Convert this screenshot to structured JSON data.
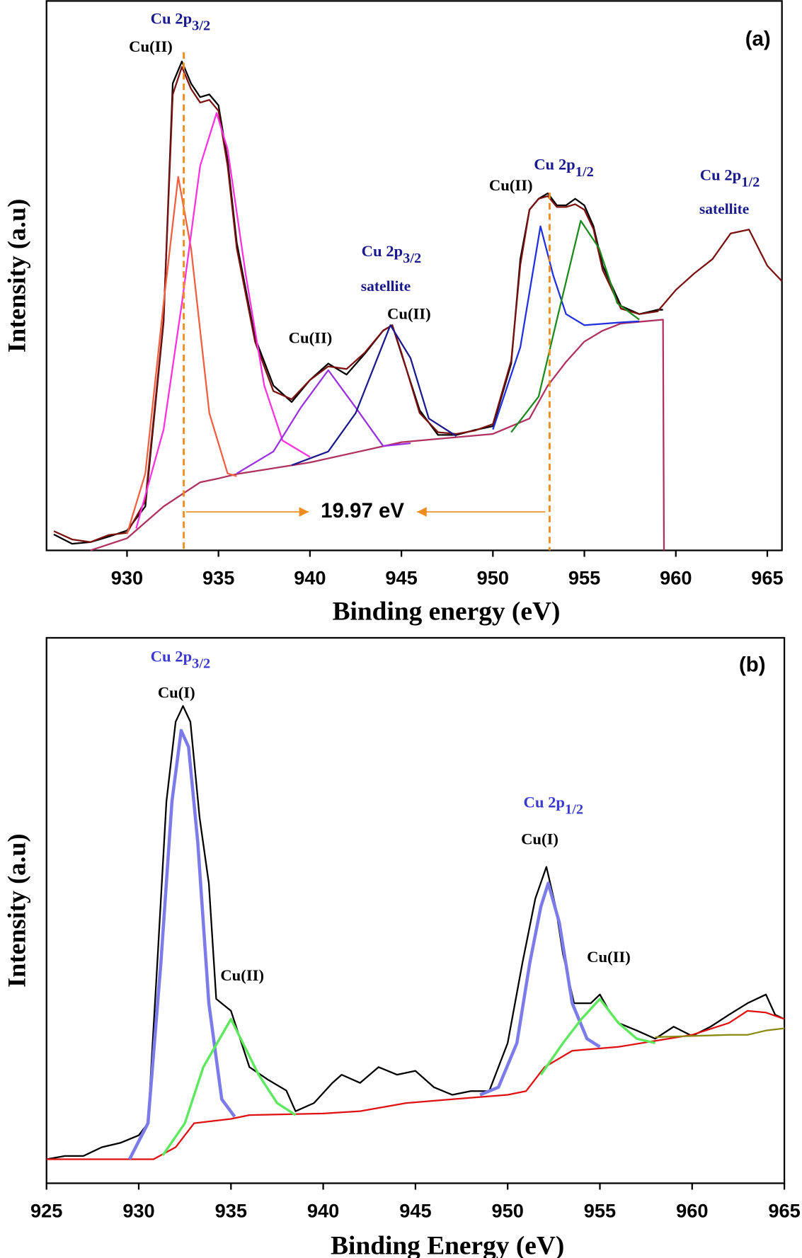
{
  "chart_data": [
    {
      "type": "line",
      "panel_label": "(a)",
      "xlabel": "Binding energy (eV)",
      "ylabel": "Intensity (a.u)",
      "xlim": [
        925.6,
        965.8
      ],
      "xticks": [
        930,
        935,
        940,
        945,
        950,
        955,
        960,
        965
      ],
      "ylim": [
        0,
        100
      ],
      "vlines": [
        933.1,
        953.1
      ],
      "vline_color": "#f08c1e",
      "series": [
        {
          "color": "#000000",
          "x": [
            926,
            927,
            928,
            929,
            930,
            931,
            932,
            932.5,
            933,
            933.5,
            934,
            934.5,
            935,
            935.5,
            936,
            937,
            938,
            939,
            940,
            941,
            942,
            943,
            944,
            944.5,
            945,
            946,
            947,
            948,
            949,
            950,
            951,
            951.5,
            952,
            952.5,
            953,
            953.5,
            954,
            954.5,
            955,
            955.5,
            956,
            957,
            958,
            959,
            959.3
          ],
          "values": [
            2.9,
            1.2,
            1.5,
            2.5,
            3.6,
            8,
            41.6,
            85,
            89,
            85,
            82.5,
            83,
            81,
            71,
            56,
            38.7,
            30,
            27,
            31,
            34,
            32,
            35.8,
            40,
            41,
            35.8,
            25.5,
            21,
            21,
            21.9,
            22.6,
            34,
            53,
            62,
            64,
            65,
            62.8,
            62.8,
            64,
            62.8,
            59,
            51.8,
            44.5,
            43,
            43.8,
            43.8
          ]
        },
        {
          "color": "#7b1010",
          "x": [
            926,
            927,
            928,
            929,
            930,
            931,
            932,
            932.5,
            933,
            933.5,
            934,
            934.5,
            935,
            935.5,
            936,
            937,
            938,
            939,
            940,
            941,
            942,
            943,
            944,
            944.5,
            945,
            946,
            947,
            948,
            949,
            950,
            951,
            951.5,
            952,
            952.5,
            953,
            953.5,
            954,
            954.5,
            955,
            955.5,
            956,
            957,
            958,
            959,
            960,
            961,
            962,
            963,
            964,
            965,
            965.8
          ],
          "values": [
            3.5,
            2,
            1.5,
            2.8,
            3.2,
            9,
            42,
            83,
            88,
            84,
            81.5,
            82,
            80,
            70,
            55,
            38,
            29,
            27.5,
            31,
            33.5,
            33,
            36,
            40,
            41,
            36,
            25,
            21.5,
            21.2,
            21.8,
            23,
            34.5,
            52,
            62,
            64,
            64.5,
            62.5,
            62.5,
            63,
            62,
            58.5,
            51,
            44,
            43,
            43.5,
            47.4,
            50.4,
            53,
            57.7,
            58.4,
            51.8,
            49
          ]
        },
        {
          "color": "#b03060",
          "x": [
            928,
            930,
            932,
            934,
            935,
            936,
            940,
            945,
            950,
            952,
            953,
            954,
            955,
            956,
            957,
            958,
            959.3,
            959.35
          ],
          "values": [
            0,
            2.2,
            8,
            12.4,
            13.1,
            13.9,
            16,
            19.7,
            21.2,
            24,
            30,
            34.3,
            38,
            40,
            41.3,
            41.6,
            42,
            0
          ]
        },
        {
          "color": "#f06040",
          "x": [
            930,
            931,
            932,
            932.8,
            933.5,
            934.5,
            935.5,
            936
          ],
          "values": [
            3,
            14,
            45,
            68,
            55,
            25,
            14,
            13.5
          ]
        },
        {
          "color": "#ff30e0",
          "x": [
            930.5,
            932,
            933,
            934,
            934.9,
            935.5,
            936.5,
            937.5,
            938.5,
            940
          ],
          "values": [
            4,
            22,
            45,
            70,
            79.6,
            73,
            50,
            30,
            20,
            17
          ]
        },
        {
          "color": "#9b30e0",
          "x": [
            936,
            938,
            939.5,
            941,
            942.5,
            944,
            945.5
          ],
          "values": [
            14,
            18,
            26,
            32.8,
            26,
            19,
            19.5
          ]
        },
        {
          "color": "#1a1a8c",
          "x": [
            939,
            941,
            942.5,
            944.4,
            945.5,
            946.5,
            948
          ],
          "values": [
            15.5,
            18,
            25,
            41,
            35,
            24,
            20.8
          ]
        },
        {
          "color": "#2030e0",
          "x": [
            950,
            951.5,
            952.6,
            953.3,
            954,
            955,
            957,
            958
          ],
          "values": [
            22,
            37,
            59,
            50,
            43,
            41,
            41.5,
            41.7
          ]
        },
        {
          "color": "#1a8a1a",
          "x": [
            951,
            952.5,
            953.5,
            954.8,
            955.8,
            956.8,
            958
          ],
          "values": [
            21.5,
            28,
            42,
            60,
            55,
            45,
            42
          ]
        }
      ],
      "annotations": [
        {
          "text": "Cu 2p",
          "sub": "3/2",
          "color": "#1a1a8c"
        },
        {
          "text": "Cu(II)",
          "color": "#000000"
        },
        {
          "text": "Cu 2p",
          "sub": "1/2",
          "color": "#1a1a8c"
        },
        {
          "text": "Cu(II)",
          "color": "#000000"
        },
        {
          "text": "Cu 2p",
          "sub": "1/2",
          "color": "#1a1a8c"
        },
        {
          "text": "satellite",
          "color": "#1a1a8c"
        },
        {
          "text": "Cu 2p",
          "sub": "3/2",
          "color": "#1a1a8c"
        },
        {
          "text": "satellite",
          "color": "#1a1a8c"
        },
        {
          "text": "Cu(II)",
          "color": "#000000"
        },
        {
          "text": "Cu(II)",
          "color": "#000000"
        },
        {
          "text": "19.97 eV",
          "color": "#000000"
        }
      ]
    },
    {
      "type": "line",
      "panel_label": "(b)",
      "xlabel": "Binding Energy (eV)",
      "ylabel": "Intensity (a.u)",
      "xlim": [
        925,
        965
      ],
      "xticks": [
        925,
        930,
        935,
        940,
        945,
        950,
        955,
        960,
        965
      ],
      "ylim": [
        0,
        100
      ],
      "series": [
        {
          "color": "#000000",
          "x": [
            925,
            926,
            927,
            928,
            929,
            930,
            930.5,
            931,
            931.5,
            932,
            932.4,
            932.8,
            933.3,
            933.8,
            934.2,
            935,
            936,
            937,
            938,
            938.5,
            939.5,
            940.5,
            941,
            942,
            943,
            944,
            945,
            946,
            947,
            948,
            949,
            950,
            950.8,
            951.5,
            952.1,
            952.6,
            953,
            953.6,
            954.5,
            955,
            955.5,
            956,
            957,
            958,
            959,
            960,
            961,
            962,
            963,
            964,
            964.5,
            965
          ],
          "values": [
            4.4,
            5,
            5,
            6.6,
            7.4,
            8.8,
            11,
            40,
            70,
            84.6,
            87.5,
            84.6,
            67,
            55,
            33.8,
            31.6,
            21.3,
            19,
            17,
            13.2,
            14.7,
            18.4,
            19.9,
            18.4,
            21.3,
            19.9,
            20.6,
            17.6,
            16.2,
            16.9,
            16.9,
            25.7,
            40.4,
            52.2,
            58,
            50.7,
            42,
            33,
            33,
            34.6,
            31.6,
            29.4,
            28,
            26.5,
            28.7,
            27,
            28.7,
            30.9,
            33,
            34.6,
            30.9,
            30.1
          ]
        },
        {
          "color": "#e01010",
          "x": [
            925,
            930.8,
            932,
            933,
            935,
            936,
            940,
            942,
            944.5,
            947,
            950,
            951,
            952,
            953.5,
            956,
            960,
            962,
            963,
            964,
            965
          ],
          "values": [
            4.4,
            4.4,
            6.6,
            11,
            11.8,
            12.5,
            12.8,
            13.2,
            14.7,
            15.4,
            16.2,
            16.9,
            21.3,
            24.3,
            25,
            27.2,
            29.4,
            31.6,
            31.3,
            30.1
          ]
        },
        {
          "color": "#7b7bea",
          "width": 4,
          "x": [
            929.5,
            930.5,
            931.2,
            931.8,
            932.3,
            932.7,
            933.2,
            933.8,
            934.5,
            935.2,
            null,
            948.5,
            949.5,
            950.5,
            951.2,
            951.8,
            952.2,
            952.8,
            953.5,
            954.3,
            955
          ],
          "values": [
            4.4,
            11,
            40.4,
            70,
            83,
            80,
            62.5,
            33,
            15.4,
            12.2,
            null,
            16.2,
            17.6,
            25.7,
            40.4,
            50.7,
            55,
            47.8,
            33,
            26.5,
            25
          ]
        },
        {
          "color": "#5de85d",
          "width": 3,
          "x": [
            931.3,
            932.5,
            933.5,
            935,
            936.5,
            937.5,
            938.5,
            null,
            951.8,
            953,
            954,
            955,
            956,
            957,
            958
          ],
          "values": [
            5.1,
            11,
            21.3,
            30.1,
            19.9,
            14.7,
            12.5,
            null,
            19.9,
            25.7,
            30.1,
            33.8,
            29.4,
            26.5,
            25.7
          ]
        },
        {
          "color": "#8a8a10",
          "x": [
            958,
            962,
            963,
            964,
            965
          ],
          "values": [
            26.8,
            27.2,
            27.2,
            28,
            28.4
          ]
        }
      ],
      "annotations": [
        {
          "text": "Cu 2p",
          "sub": "3/2",
          "color": "#3a3ad0"
        },
        {
          "text": "Cu(I)",
          "color": "#000000"
        },
        {
          "text": "Cu(II)",
          "color": "#000000"
        },
        {
          "text": "Cu 2p",
          "sub": "1/2",
          "color": "#3a3ad0"
        },
        {
          "text": "Cu(I)",
          "color": "#000000"
        },
        {
          "text": "Cu(II)",
          "color": "#000000"
        }
      ]
    }
  ]
}
